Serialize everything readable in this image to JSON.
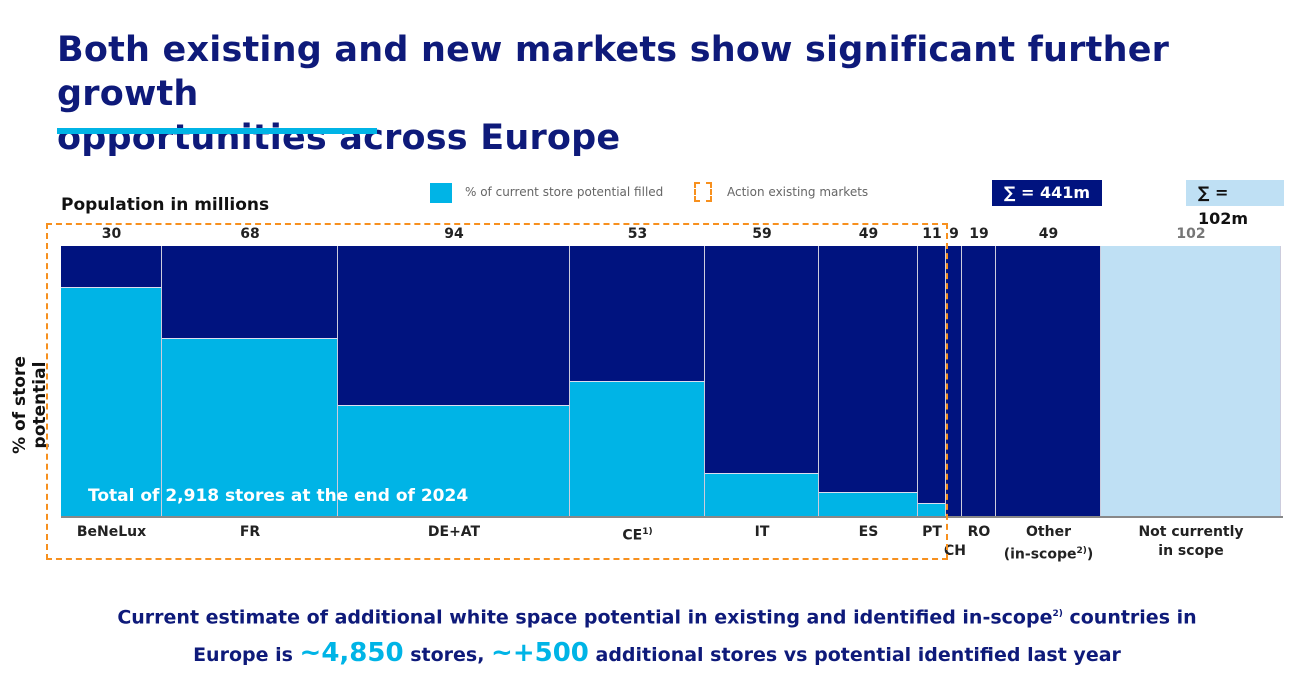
{
  "header": {
    "title_line1": "Both existing and new markets show significant further growth",
    "title_line2": "opportunities across Europe"
  },
  "colors": {
    "filled": "#00b4e6",
    "unfilled": "#00137f",
    "out_of_scope": "#bfe0f4",
    "action": "#f7901e"
  },
  "chart_data": {
    "type": "marimekko",
    "xlabel": "Population in millions",
    "ylabel": "% of store potential",
    "legend": [
      {
        "label": "% of current store potential filled"
      },
      {
        "label": "Action existing markets"
      }
    ],
    "sums": {
      "in_scope": "∑ = 441m",
      "not_in_scope": "∑ = 102m"
    },
    "categories": [
      "BeNeLux",
      "FR",
      "DE+AT",
      "CE",
      "IT",
      "ES",
      "PT",
      "CH",
      "RO",
      "Other",
      "Not currently in scope"
    ],
    "category_labels": [
      "BeNeLux",
      "FR",
      "DE+AT",
      "CE",
      "IT",
      "ES",
      "PT",
      "CH",
      "RO",
      "Other",
      "Not currently"
    ],
    "category_labels2": [
      "",
      "",
      "",
      "",
      "",
      "",
      "",
      "",
      "",
      "(in-scope",
      "in scope"
    ],
    "population_labels": [
      "30",
      "68",
      "94",
      "53",
      "59",
      "49",
      "11",
      "9",
      "19",
      "49",
      "102"
    ],
    "population": [
      30,
      68,
      94,
      53,
      59,
      49,
      11,
      9,
      19,
      49,
      102
    ],
    "filled_pct": [
      85,
      66,
      41,
      50,
      16,
      9,
      5,
      0,
      0,
      0,
      null
    ],
    "annotation": "Total of 2,918 stores at the end of 2024"
  },
  "footer": {
    "line1a": "Current estimate of additional white space potential in existing and identified in-scope",
    "sup": "2)",
    "line1b": " countries in",
    "line2a": "Europe is ",
    "hl1": "~4,850",
    "line2b": " stores, ",
    "hl2": "~+500",
    "line2c": " additional stores vs potential identified last year",
    "ce_sup": "1)",
    "other_sup": "2)",
    "other_close": ")"
  }
}
